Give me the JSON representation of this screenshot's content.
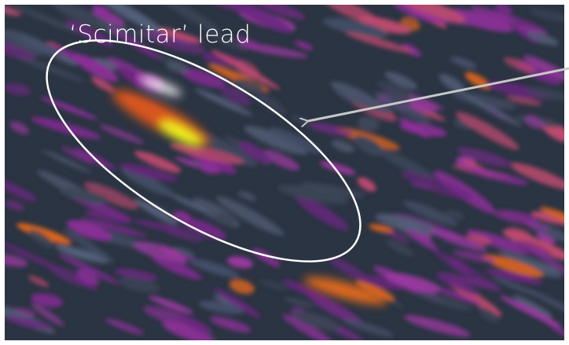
{
  "annotation": {
    "label": "‘Scimitar’ lead"
  }
}
